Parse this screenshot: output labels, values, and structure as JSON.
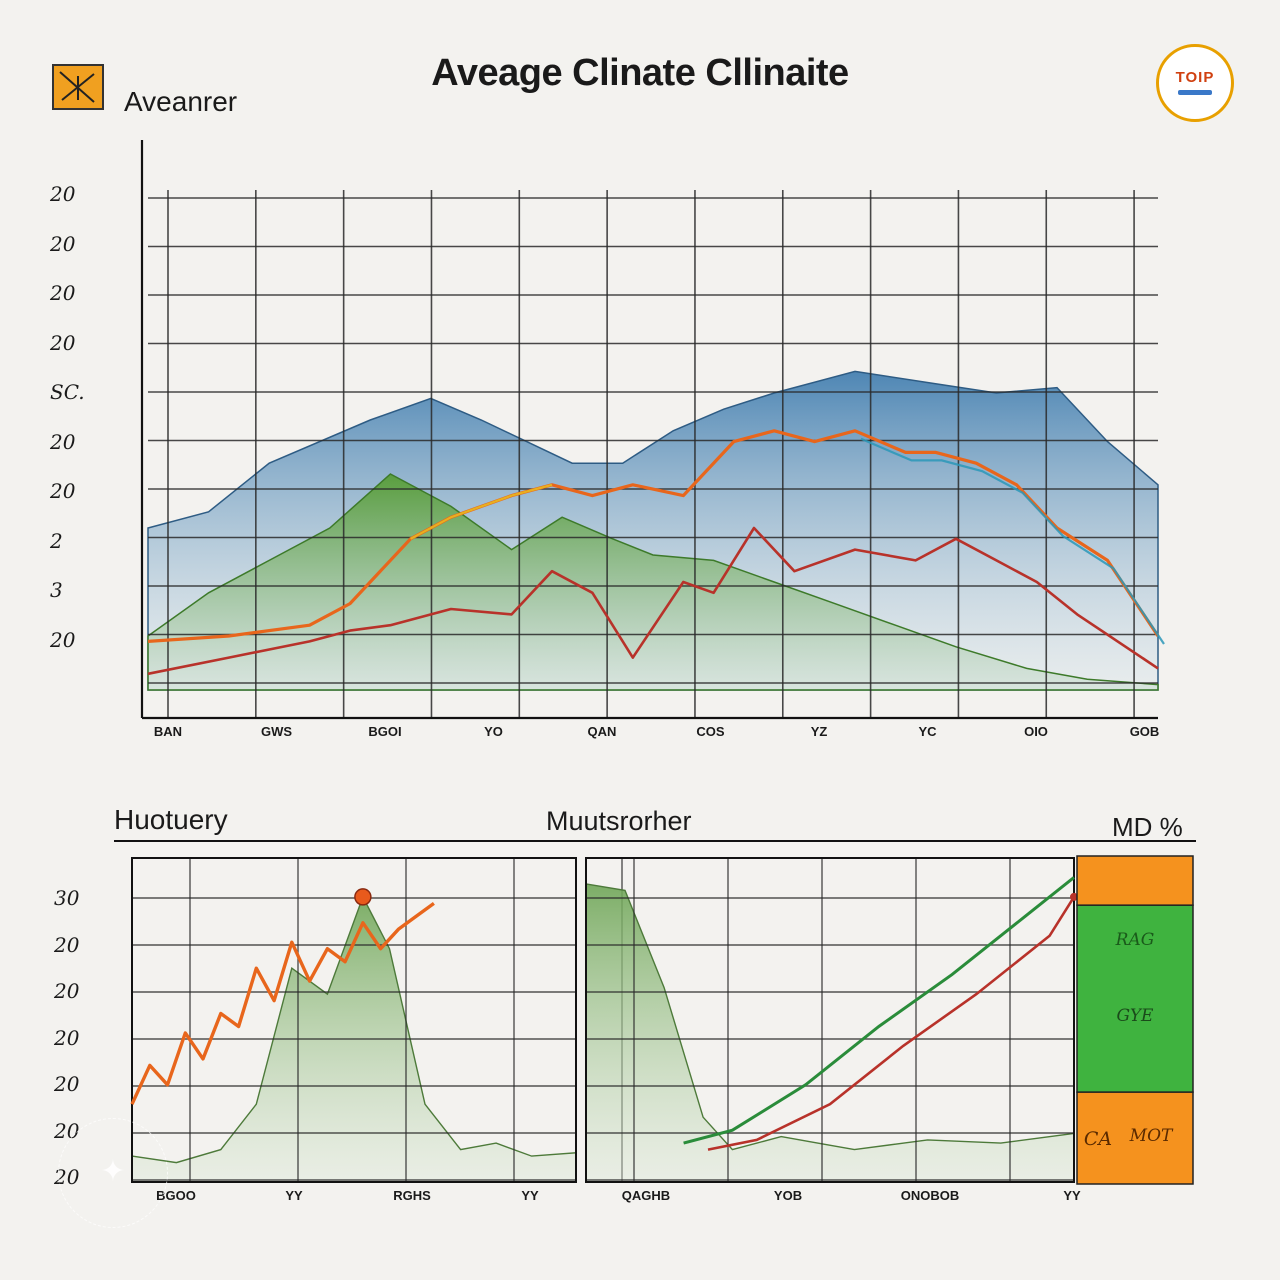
{
  "header": {
    "title": "Aveage Clinate Cllinaite",
    "logo_label": "Aveanrer",
    "badge_text": "TOIP",
    "logo_icon": "chart-icon"
  },
  "colors": {
    "mountain_blue": "#4e86b4",
    "forest_green": "#5a9e3e",
    "line_orange": "#e8661c",
    "line_red": "#b8322a",
    "line_yellow": "#e8b820",
    "line_teal": "#2a98b8",
    "line_green": "#2a8c3a",
    "legend_orange": "#f5921e",
    "legend_green": "#3fb33f",
    "grid": "#2a2a2a"
  },
  "chart_data": [
    {
      "type": "area",
      "title": "Aveage Clinate Cllinaite",
      "yticks": [
        "20",
        "20",
        "20",
        "20",
        "SC.",
        "20",
        "20",
        "2",
        "3",
        "20"
      ],
      "xticks": [
        "BAN",
        "GWS",
        "BGOI",
        "YO",
        "QAN",
        "COS",
        "YZ",
        "YC",
        "OIO",
        "GOB"
      ],
      "series": [
        {
          "values_x": [
            0,
            6,
            12,
            22,
            28,
            33,
            42,
            47,
            52,
            57,
            62,
            70,
            77,
            84,
            90,
            95,
            100
          ],
          "values_y": [
            30,
            33,
            42,
            50,
            54,
            50,
            42,
            42,
            48,
            52,
            55,
            59,
            57,
            55,
            56,
            46,
            38
          ]
        },
        {
          "values_x": [
            0,
            6,
            12,
            18,
            24,
            30,
            36,
            41,
            46,
            50,
            56,
            62,
            68,
            74,
            80,
            87,
            93,
            100
          ],
          "values_y": [
            10,
            18,
            24,
            30,
            40,
            34,
            26,
            32,
            28,
            25,
            24,
            20,
            16,
            12,
            8,
            4,
            2,
            1
          ]
        },
        {
          "values_x": [
            0,
            8,
            16,
            20,
            26,
            30,
            36,
            40,
            44,
            48,
            53,
            58,
            62,
            66,
            70,
            75,
            78,
            82,
            86,
            90,
            95,
            100
          ],
          "values_y": [
            9,
            10,
            12,
            16,
            28,
            32,
            36,
            38,
            36,
            38,
            36,
            46,
            48,
            46,
            48,
            44,
            44,
            42,
            38,
            30,
            24,
            10
          ]
        },
        {
          "values_x": [
            0,
            8,
            16,
            20,
            24,
            30,
            36,
            40,
            44,
            48,
            53,
            56,
            60,
            64,
            70,
            76,
            80,
            84,
            88,
            92,
            96,
            100
          ],
          "values_y": [
            3,
            6,
            9,
            11,
            12,
            15,
            14,
            22,
            18,
            6,
            20,
            18,
            30,
            22,
            26,
            24,
            28,
            24,
            20,
            14,
            9,
            4
          ]
        }
      ]
    },
    {
      "type": "area",
      "title": "Huotuery",
      "yticks": [
        "30",
        "20",
        "20",
        "20",
        "20",
        "20",
        "20"
      ],
      "xticks": [
        "BGOO",
        "YY",
        "RGHS",
        "YY"
      ],
      "series": [
        {
          "values_x": [
            0,
            10,
            20,
            28,
            36,
            44,
            52,
            58,
            66,
            74,
            82,
            90,
            100
          ],
          "values_y": [
            8,
            6,
            10,
            24,
            66,
            58,
            88,
            72,
            24,
            10,
            12,
            8,
            9
          ]
        },
        {
          "values_x": [
            0,
            4,
            8,
            12,
            16,
            20,
            24,
            28,
            32,
            36,
            40,
            44,
            48,
            52,
            56,
            60,
            64,
            68
          ],
          "values_y": [
            24,
            36,
            30,
            46,
            38,
            52,
            48,
            66,
            56,
            74,
            62,
            72,
            68,
            80,
            72,
            78,
            82,
            86
          ]
        }
      ]
    },
    {
      "type": "line",
      "title": "Muutsrorher",
      "yticks": [],
      "xticks": [
        "QAGHB",
        "YOB",
        "ONOBOB",
        "YY"
      ],
      "series": [
        {
          "values_x": [
            0,
            8,
            16,
            24,
            30,
            40,
            55,
            70,
            85,
            100
          ],
          "values_y": [
            92,
            90,
            60,
            20,
            10,
            14,
            10,
            13,
            12,
            15
          ]
        },
        {
          "values_x": [
            20,
            30,
            45,
            60,
            75,
            90,
            100
          ],
          "values_y": [
            12,
            16,
            30,
            48,
            64,
            82,
            94
          ]
        },
        {
          "values_x": [
            25,
            35,
            50,
            65,
            80,
            95,
            100
          ],
          "values_y": [
            10,
            13,
            24,
            42,
            58,
            76,
            88
          ]
        }
      ]
    },
    {
      "type": "bar",
      "title": "MD %",
      "categories": [
        "RAG",
        "GYE",
        "MOT"
      ],
      "values": [
        1,
        2,
        1
      ],
      "legend_label": "CA"
    }
  ]
}
